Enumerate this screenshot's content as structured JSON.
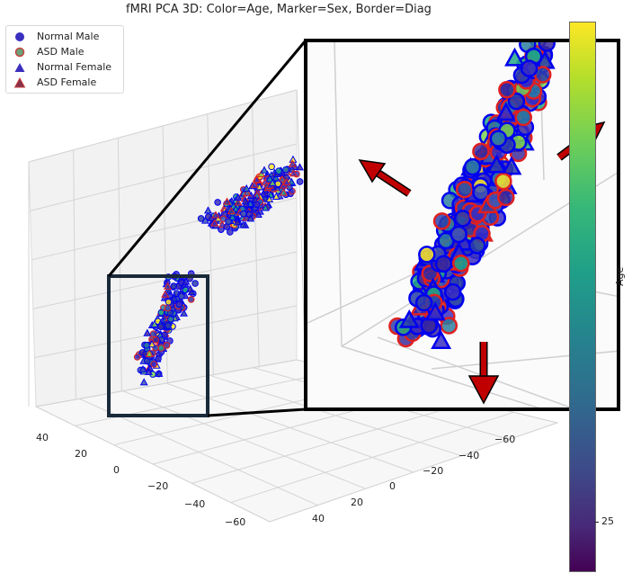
{
  "chart_data": {
    "type": "scatter",
    "title": "fMRI PCA 3D: Color=Age, Marker=Sex, Border=Diag",
    "legend": {
      "placement": "top-left",
      "entries": [
        {
          "label": "Normal Male",
          "marker": "circle",
          "fill": "#3b2fbf",
          "edge": "#3b2fbf"
        },
        {
          "label": "ASD Male",
          "marker": "circle",
          "fill": "#6aa37a",
          "edge": "#c2413f"
        },
        {
          "label": "Normal Female",
          "marker": "triangle",
          "fill": "#3b2fbf",
          "edge": "#3b2fbf"
        },
        {
          "label": "ASD Female",
          "marker": "triangle",
          "fill": "#8a2f4a",
          "edge": "#c2413f"
        }
      ]
    },
    "axes": {
      "x_ticks": [
        "40",
        "20",
        "0",
        "−20",
        "−40",
        "−60"
      ],
      "y_ticks": [
        "−60",
        "−40",
        "−20",
        "0",
        "20",
        "40"
      ],
      "grid": true
    },
    "colorbar": {
      "label": "Age",
      "ticks": [
        "25"
      ],
      "colormap": "viridis"
    },
    "colors": {
      "border": "#0000ee",
      "asd_edge": "#e02020",
      "arrow": "#c00000",
      "inset_frame": "#000000",
      "box": "#1a2a3a"
    },
    "inset": {
      "description_visible": false
    }
  }
}
